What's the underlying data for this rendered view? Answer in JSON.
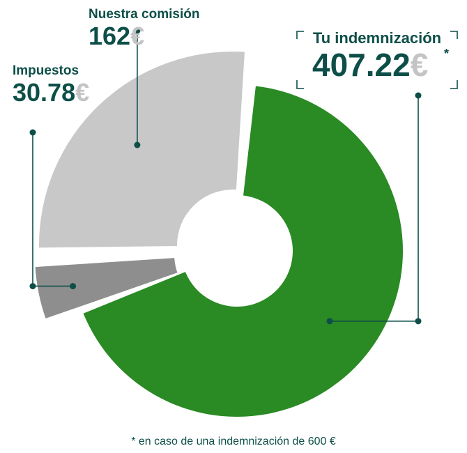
{
  "chart_data": {
    "type": "pie",
    "donut": true,
    "currency_symbol": "€",
    "slices": [
      {
        "label": "Tu indemnización",
        "amount": "407.22",
        "value": 407.22,
        "color": "#2a8a24",
        "highlight": true,
        "star": "*"
      },
      {
        "label": "Impuestos",
        "amount": "30.78",
        "value": 30.78,
        "color": "#8e8e8e"
      },
      {
        "label": "Nuestra comisión",
        "amount": "162",
        "value": 162,
        "color": "#c8c8c8"
      }
    ],
    "footnote": "* en caso de una indemnización de 600 €"
  }
}
